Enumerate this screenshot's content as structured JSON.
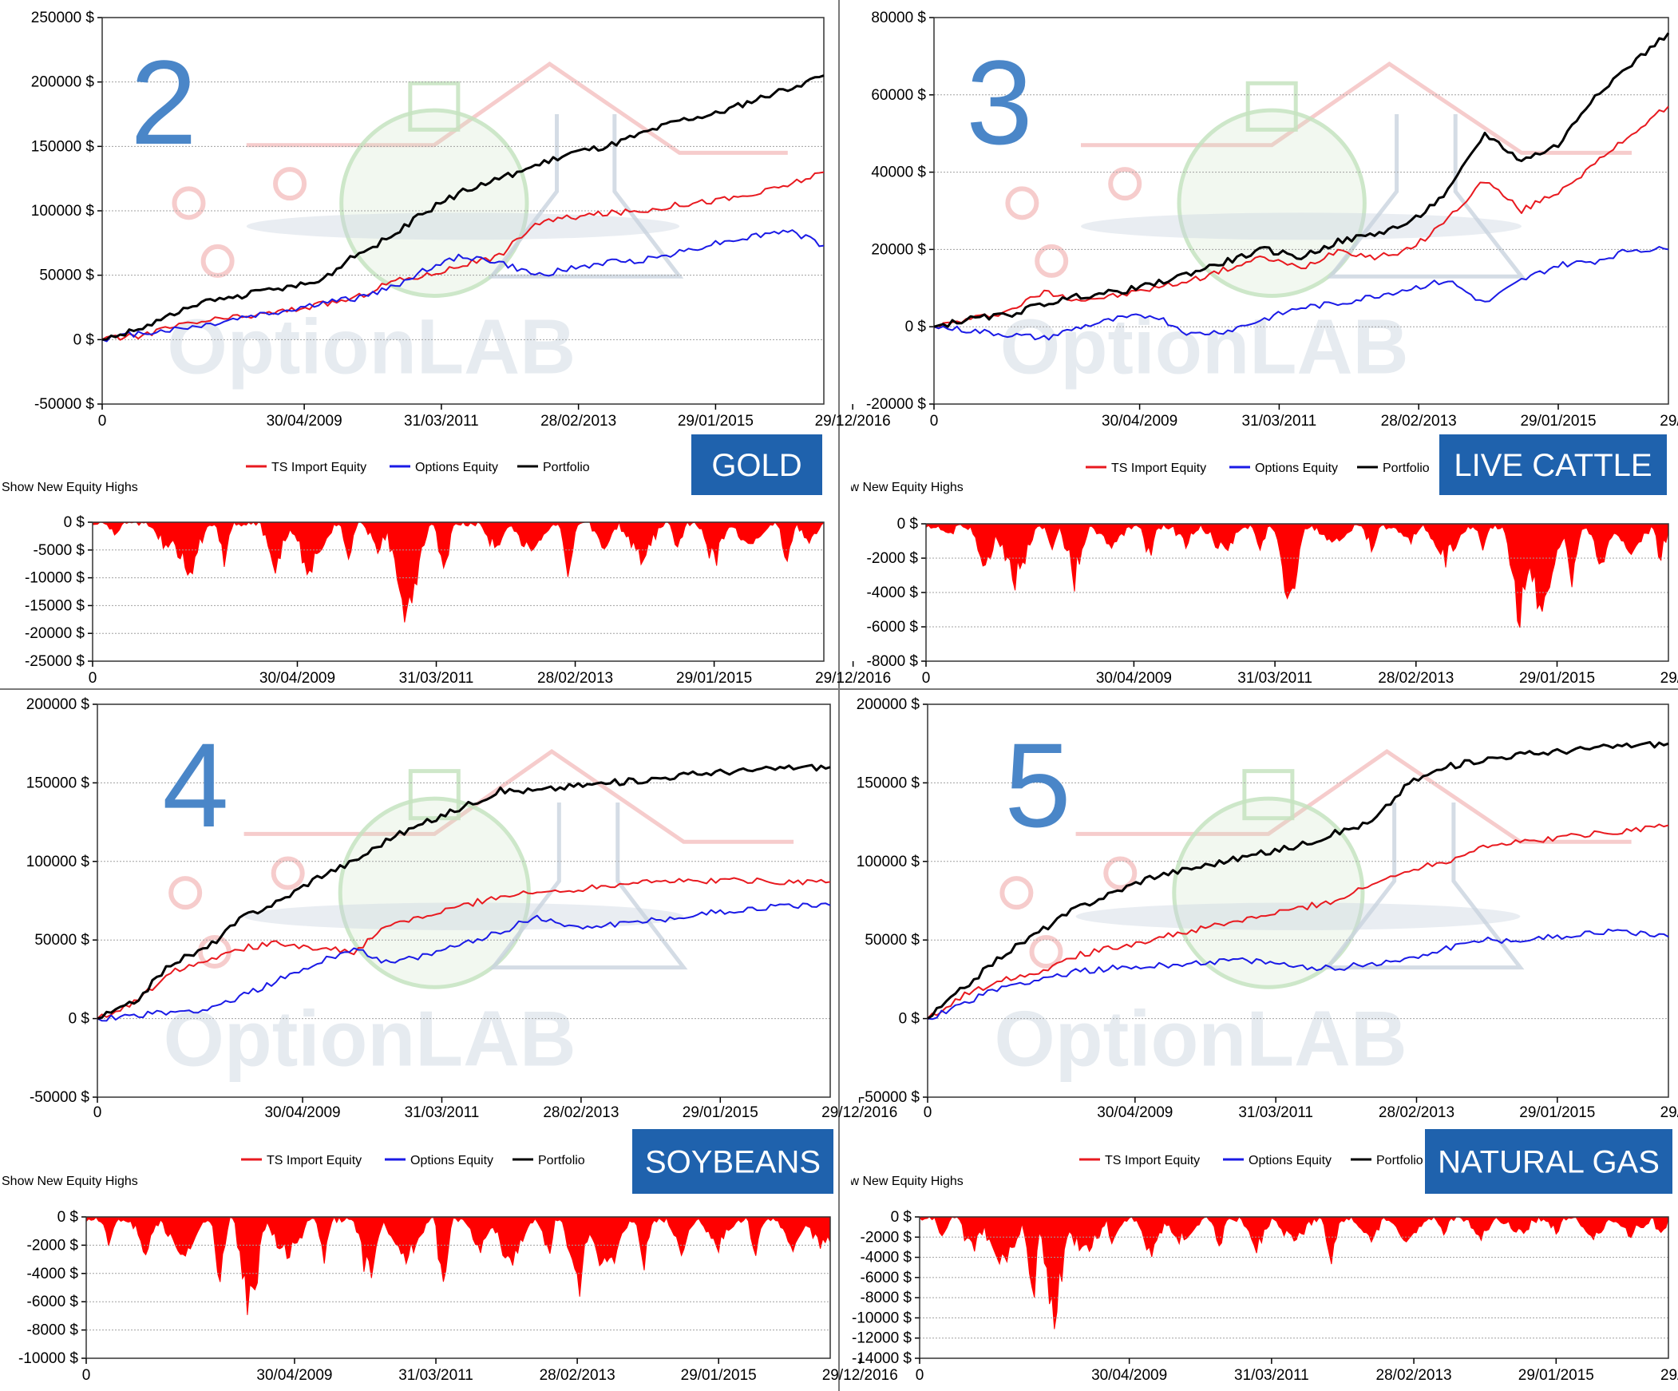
{
  "colors": {
    "ts_import": "#e8191f",
    "options": "#1a1ae6",
    "portfolio": "#000000",
    "drawdown_fill": "#ff0000",
    "badge_bg": "#1f62ad",
    "badge_text": "#ffffff",
    "number_text": "#4a86c8",
    "grid": "#a0a0a0",
    "watermark_red": "#f2b7b7",
    "watermark_green": "#c5e3c0",
    "watermark_gray": "#c9d3de"
  },
  "watermark": {
    "text": "OptionLAB"
  },
  "show_new_equity_highs_label": "Show New Equity Highs",
  "legend": {
    "ts_import": "TS Import Equity",
    "options": "Options Equity",
    "portfolio": "Portfolio"
  },
  "x_ticks": [
    "0",
    "30/04/2009",
    "31/03/2011",
    "28/02/2013",
    "29/01/2015",
    "29/12/2016"
  ],
  "panels": [
    {
      "number": "2",
      "badge": "GOLD",
      "equity": {
        "type": "line",
        "yticks": [
          "250000 $",
          "200000 $",
          "150000 $",
          "100000 $",
          "50000 $",
          "0 $",
          "-50000 $"
        ],
        "ylim": [
          -50000,
          250000
        ],
        "x": [
          0,
          0.05,
          0.1,
          0.15,
          0.2,
          0.25,
          0.3,
          0.35,
          0.4,
          0.45,
          0.5,
          0.55,
          0.6,
          0.65,
          0.7,
          0.75,
          0.8,
          0.85,
          0.9,
          0.95,
          1
        ],
        "series": [
          {
            "name": "TS Import Equity",
            "values": [
              0,
              3000,
              10000,
              15000,
              18000,
              22000,
              27000,
              32000,
              45000,
              50000,
              58000,
              65000,
              90000,
              95000,
              98000,
              100000,
              105000,
              108000,
              112000,
              120000,
              130000
            ]
          },
          {
            "name": "Options Equity",
            "values": [
              0,
              5000,
              8000,
              12000,
              18000,
              22000,
              28000,
              32000,
              40000,
              55000,
              65000,
              60000,
              50000,
              55000,
              60000,
              62000,
              68000,
              75000,
              80000,
              85000,
              73000
            ]
          },
          {
            "name": "Portfolio",
            "values": [
              0,
              8000,
              20000,
              30000,
              35000,
              40000,
              45000,
              65000,
              80000,
              100000,
              115000,
              125000,
              135000,
              145000,
              150000,
              160000,
              170000,
              175000,
              185000,
              195000,
              205000
            ]
          }
        ]
      },
      "drawdown": {
        "type": "area",
        "yticks": [
          "0 $",
          "-5000 $",
          "-10000 $",
          "-15000 $",
          "-20000 $",
          "-25000 $"
        ],
        "ylim": [
          -25000,
          0
        ],
        "x": [
          0.03,
          0.1,
          0.13,
          0.18,
          0.25,
          0.3,
          0.35,
          0.39,
          0.43,
          0.48,
          0.55,
          0.6,
          0.65,
          0.7,
          0.75,
          0.8,
          0.85,
          0.9,
          0.95,
          0.98
        ],
        "values": [
          -3000,
          -6000,
          -12000,
          -8000,
          -10000,
          -12000,
          -7000,
          -6000,
          -20500,
          -13000,
          -6000,
          -7000,
          -12000,
          -6000,
          -8000,
          -6000,
          -9000,
          -5000,
          -10000,
          -4000
        ]
      }
    },
    {
      "number": "3",
      "badge": "LIVE CATTLE",
      "equity": {
        "type": "line",
        "yticks": [
          "80000 $",
          "60000 $",
          "40000 $",
          "20000 $",
          "0 $",
          "-20000 $"
        ],
        "ylim": [
          -20000,
          80000
        ],
        "x": [
          0,
          0.05,
          0.1,
          0.15,
          0.2,
          0.25,
          0.3,
          0.35,
          0.4,
          0.45,
          0.5,
          0.55,
          0.6,
          0.65,
          0.7,
          0.75,
          0.8,
          0.85,
          0.9,
          0.95,
          1
        ],
        "series": [
          {
            "name": "TS Import Equity",
            "values": [
              0,
              2000,
              4000,
              9000,
              7000,
              8000,
              10000,
              12000,
              15000,
              18000,
              15000,
              20000,
              18000,
              20000,
              28000,
              38000,
              30000,
              35000,
              42000,
              50000,
              57000
            ]
          },
          {
            "name": "Options Equity",
            "values": [
              0,
              -1000,
              -2000,
              -3000,
              0,
              2000,
              3000,
              -2000,
              -1000,
              2000,
              5000,
              6000,
              8000,
              10000,
              12000,
              6000,
              12000,
              16000,
              17000,
              20000,
              20000
            ]
          },
          {
            "name": "Portfolio",
            "values": [
              0,
              2000,
              3000,
              6000,
              8000,
              9000,
              11000,
              14000,
              17000,
              20000,
              18000,
              22000,
              24000,
              27000,
              35000,
              50000,
              43000,
              47000,
              60000,
              68000,
              76000
            ]
          }
        ]
      },
      "drawdown": {
        "type": "area",
        "yticks": [
          "0 $",
          "-2000 $",
          "-4000 $",
          "-6000 $",
          "-8000 $"
        ],
        "ylim": [
          -8000,
          0
        ],
        "x": [
          0.03,
          0.08,
          0.12,
          0.17,
          0.2,
          0.25,
          0.3,
          0.35,
          0.4,
          0.45,
          0.49,
          0.55,
          0.6,
          0.65,
          0.7,
          0.75,
          0.8,
          0.83,
          0.87,
          0.91,
          0.95,
          0.99
        ],
        "values": [
          -1000,
          -3000,
          -4000,
          -2000,
          -4000,
          -1500,
          -2500,
          -1500,
          -2000,
          -2000,
          -6000,
          -1500,
          -2000,
          -1500,
          -2500,
          -1500,
          -7000,
          -6500,
          -5000,
          -3000,
          -2000,
          -2500
        ]
      }
    },
    {
      "number": "4",
      "badge": "SOYBEANS",
      "equity": {
        "type": "line",
        "yticks": [
          "200000 $",
          "150000 $",
          "100000 $",
          "50000 $",
          "0 $",
          "-50000 $"
        ],
        "ylim": [
          -50000,
          200000
        ],
        "x": [
          0,
          0.05,
          0.1,
          0.15,
          0.2,
          0.25,
          0.3,
          0.35,
          0.4,
          0.45,
          0.5,
          0.55,
          0.6,
          0.65,
          0.7,
          0.75,
          0.8,
          0.85,
          0.9,
          0.95,
          1
        ],
        "series": [
          {
            "name": "TS Import Equity",
            "values": [
              0,
              10000,
              30000,
              38000,
              45000,
              48000,
              45000,
              42000,
              60000,
              65000,
              72000,
              78000,
              80000,
              82000,
              85000,
              88000,
              87000,
              88000,
              88000,
              87000,
              87000
            ]
          },
          {
            "name": "Options Equity",
            "values": [
              0,
              2000,
              4000,
              6000,
              15000,
              25000,
              35000,
              45000,
              35000,
              40000,
              48000,
              55000,
              65000,
              58000,
              60000,
              62000,
              65000,
              68000,
              70000,
              72000,
              72000
            ]
          },
          {
            "name": "Portfolio",
            "values": [
              0,
              10000,
              35000,
              45000,
              65000,
              75000,
              90000,
              100000,
              115000,
              125000,
              135000,
              145000,
              145000,
              148000,
              150000,
              152000,
              155000,
              157000,
              158000,
              160000,
              160000
            ]
          }
        ]
      },
      "drawdown": {
        "type": "area",
        "yticks": [
          "0 $",
          "-2000 $",
          "-4000 $",
          "-6000 $",
          "-8000 $",
          "-10000 $"
        ],
        "ylim": [
          -10000,
          0
        ],
        "x": [
          0.03,
          0.08,
          0.13,
          0.18,
          0.22,
          0.27,
          0.32,
          0.38,
          0.43,
          0.48,
          0.53,
          0.57,
          0.62,
          0.66,
          0.7,
          0.75,
          0.8,
          0.85,
          0.9,
          0.95,
          0.99
        ],
        "values": [
          -2000,
          -3000,
          -4000,
          -6000,
          -8600,
          -4000,
          -4000,
          -5500,
          -4000,
          -6300,
          -3000,
          -4000,
          -3500,
          -6500,
          -5000,
          -4000,
          -3000,
          -2500,
          -3500,
          -3000,
          -2500
        ]
      }
    },
    {
      "number": "5",
      "badge": "NATURAL GAS",
      "equity": {
        "type": "line",
        "yticks": [
          "200000 $",
          "150000 $",
          "100000 $",
          "50000 $",
          "0 $",
          "-50000 $"
        ],
        "ylim": [
          -50000,
          200000
        ],
        "x": [
          0,
          0.05,
          0.1,
          0.15,
          0.2,
          0.25,
          0.3,
          0.35,
          0.4,
          0.45,
          0.5,
          0.55,
          0.6,
          0.65,
          0.7,
          0.75,
          0.8,
          0.85,
          0.9,
          0.95,
          1
        ],
        "series": [
          {
            "name": "TS Import Equity",
            "values": [
              0,
              15000,
              25000,
              30000,
              40000,
              45000,
              50000,
              55000,
              60000,
              65000,
              70000,
              75000,
              85000,
              95000,
              100000,
              110000,
              112000,
              115000,
              118000,
              120000,
              123000
            ]
          },
          {
            "name": "Options Equity",
            "values": [
              0,
              10000,
              20000,
              25000,
              30000,
              32000,
              33000,
              35000,
              37000,
              36000,
              33000,
              32000,
              35000,
              38000,
              45000,
              50000,
              50000,
              52000,
              55000,
              55000,
              52000
            ]
          },
          {
            "name": "Portfolio",
            "values": [
              0,
              20000,
              40000,
              55000,
              70000,
              80000,
              90000,
              95000,
              100000,
              105000,
              110000,
              118000,
              125000,
              150000,
              160000,
              165000,
              168000,
              170000,
              172000,
              174000,
              175000
            ]
          }
        ]
      },
      "drawdown": {
        "type": "area",
        "yticks": [
          "0 $",
          "-2000 $",
          "-4000 $",
          "-6000 $",
          "-8000 $",
          "-10000 $",
          "-12000 $",
          "-14000 $"
        ],
        "ylim": [
          -14000,
          0
        ],
        "x": [
          0.03,
          0.07,
          0.11,
          0.15,
          0.18,
          0.22,
          0.26,
          0.31,
          0.35,
          0.4,
          0.45,
          0.5,
          0.55,
          0.6,
          0.65,
          0.7,
          0.75,
          0.8,
          0.85,
          0.9,
          0.95,
          0.99
        ],
        "values": [
          -3000,
          -4000,
          -6000,
          -12500,
          -13500,
          -5000,
          -4000,
          -5000,
          -3000,
          -3500,
          -4000,
          -3000,
          -6000,
          -3000,
          -2500,
          -2000,
          -2500,
          -2000,
          -2000,
          -3000,
          -2000,
          -2500
        ]
      }
    }
  ]
}
